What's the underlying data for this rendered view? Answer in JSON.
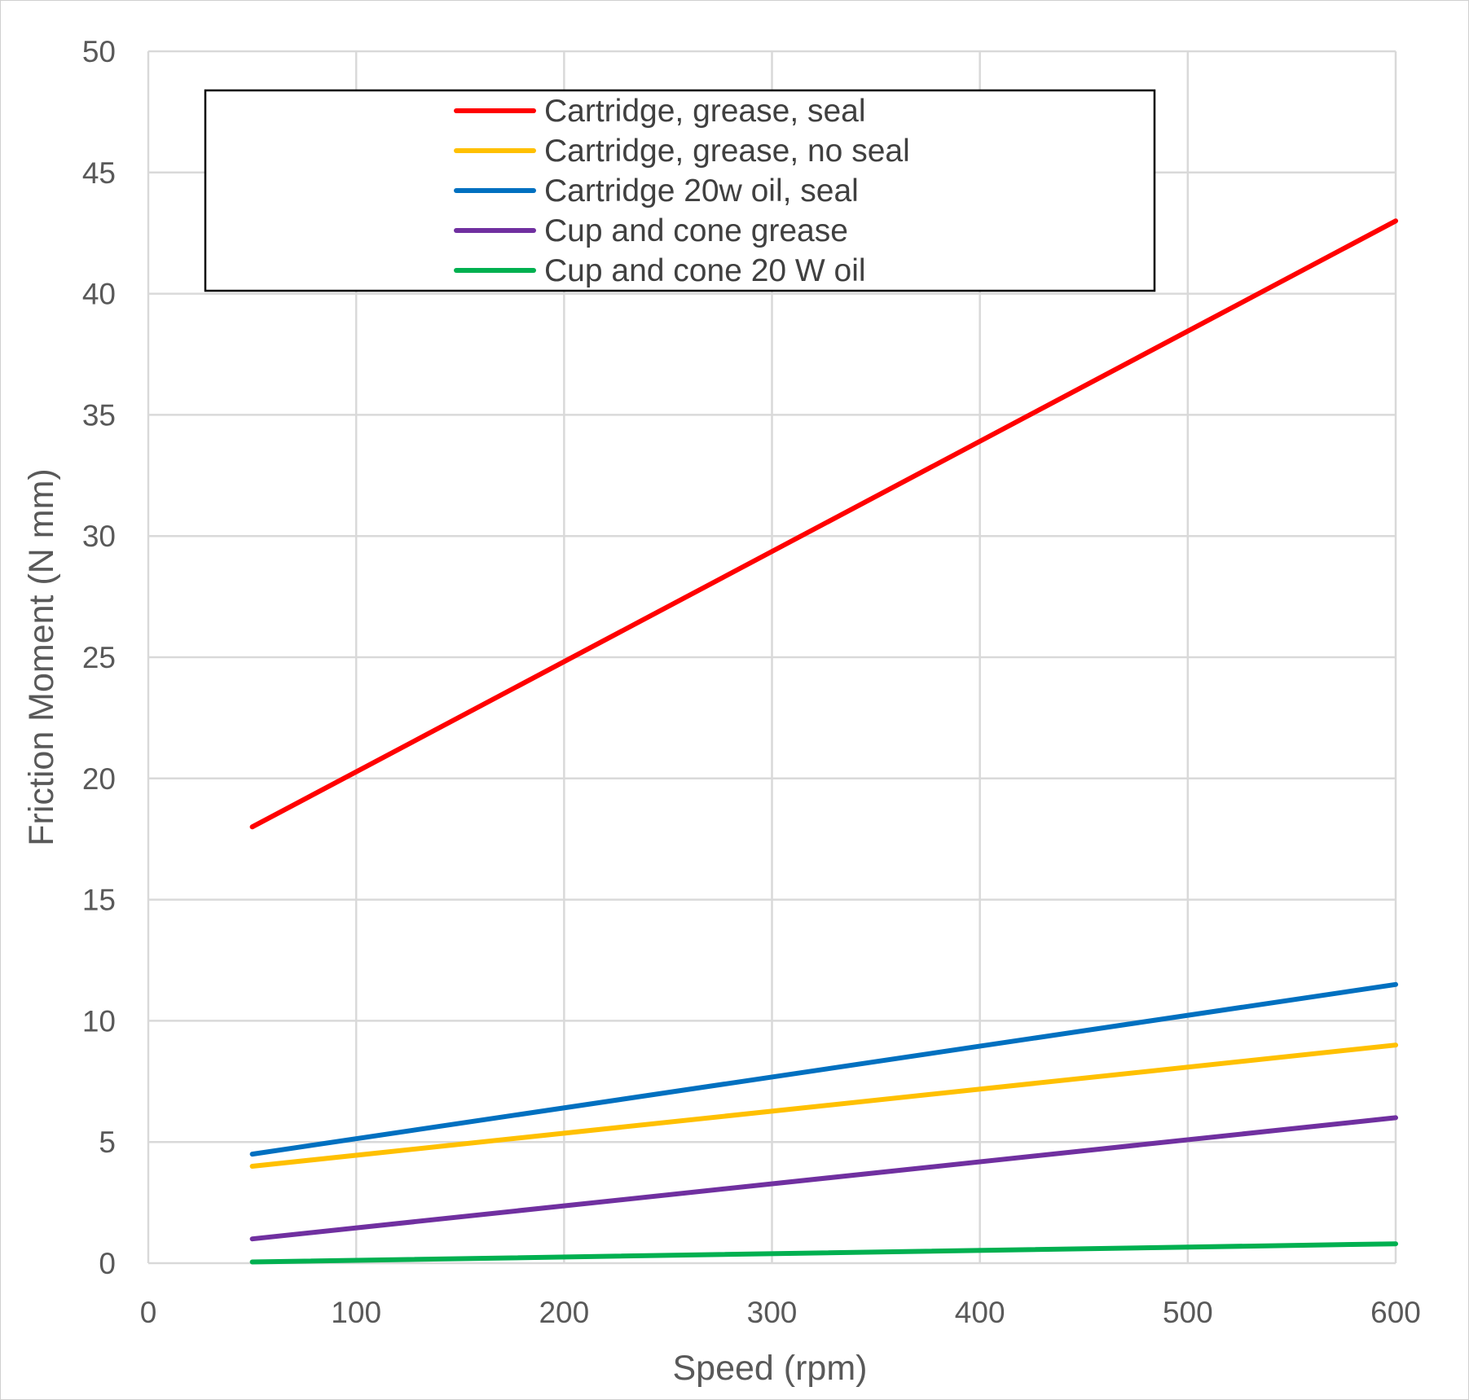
{
  "chart_data": {
    "type": "line",
    "title": "",
    "xlabel": "Speed (rpm)",
    "ylabel": "Friction Moment (N mm)",
    "xlim": [
      0,
      600
    ],
    "ylim": [
      0,
      50
    ],
    "x_ticks": [
      0,
      100,
      200,
      300,
      400,
      500,
      600
    ],
    "y_ticks": [
      0,
      5,
      10,
      15,
      20,
      25,
      30,
      35,
      40,
      45,
      50
    ],
    "grid": true,
    "legend_position": "top, inside plot, boxed",
    "series": [
      {
        "name": "Cartridge, grease, seal",
        "color": "#ff0000",
        "x": [
          50,
          600
        ],
        "y": [
          18.0,
          43.0
        ]
      },
      {
        "name": "Cartridge, grease, no seal",
        "color": "#ffc000",
        "x": [
          50,
          600
        ],
        "y": [
          4.0,
          9.0
        ]
      },
      {
        "name": "Cartridge 20w oil, seal",
        "color": "#0070c0",
        "x": [
          50,
          600
        ],
        "y": [
          4.5,
          11.5
        ]
      },
      {
        "name": "Cup and cone grease",
        "color": "#7030a0",
        "x": [
          50,
          600
        ],
        "y": [
          1.0,
          6.0
        ]
      },
      {
        "name": "Cup and cone 20 W oil",
        "color": "#00b050",
        "x": [
          50,
          600
        ],
        "y": [
          0.05,
          0.8
        ]
      }
    ]
  }
}
